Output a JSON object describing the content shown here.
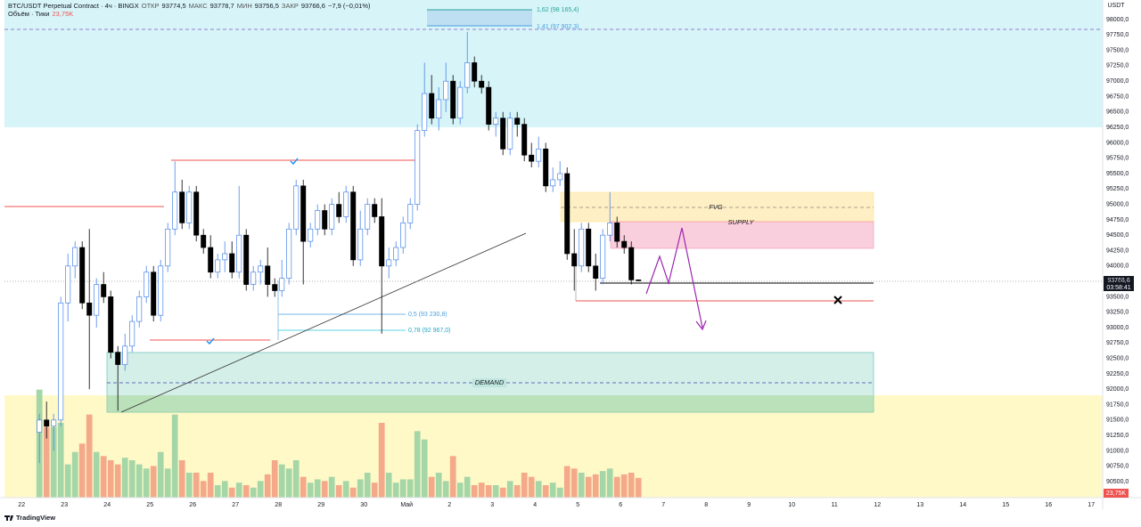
{
  "chart_data": {
    "type": "candlestick",
    "header": {
      "symbol": "BTC/USDT Perpetual Contract · 4ч · BINGX",
      "open_label": "ОТКР",
      "open": "93774,5",
      "high_label": "МАКС",
      "high": "93778,7",
      "low_label": "МИН",
      "low": "93756,5",
      "close_label": "ЗАКР",
      "close": "93766,6",
      "change": "−7,9 (−0,01%)",
      "volume_title": "Объём · Тики",
      "volume_value": "23,75K"
    },
    "currency": "USDT",
    "last_price": "93766,6",
    "countdown": "03:58:41",
    "volume_badge": "23,75K",
    "brand": "TradingView",
    "annotations": {
      "fib_top1": "1,62 (98 165,4)",
      "fib_top2": "1,41 (97 902,3)",
      "fib_low1": "0,5 (93 230,8)",
      "fib_low2": "0,78 (92 967,0)",
      "fvg": "FVG",
      "supply": "SUPPLY",
      "demand": "DEMAND"
    },
    "up_color": "#ffffff",
    "up_border": "#4a86e8",
    "down_color": "#000000",
    "volume_up_color": "#a5d6a7",
    "volume_down_color": "#f4a98a",
    "xlim": [
      -2.4,
      151.6
    ],
    "ylim": [
      90240,
      98318
    ],
    "vlim": [
      0,
      150
    ],
    "xticks": [
      {
        "value": 0,
        "label": "22"
      },
      {
        "value": 6,
        "label": "23"
      },
      {
        "value": 12,
        "label": "24"
      },
      {
        "value": 18,
        "label": "25"
      },
      {
        "value": 24,
        "label": "26"
      },
      {
        "value": 30,
        "label": "27"
      },
      {
        "value": 36,
        "label": "28"
      },
      {
        "value": 42,
        "label": "29"
      },
      {
        "value": 48,
        "label": "30"
      },
      {
        "value": 54,
        "label": "Май"
      },
      {
        "value": 60,
        "label": "2"
      },
      {
        "value": 66,
        "label": "3"
      },
      {
        "value": 72,
        "label": "4"
      },
      {
        "value": 78,
        "label": "5"
      },
      {
        "value": 84,
        "label": "6"
      },
      {
        "value": 90,
        "label": "7"
      },
      {
        "value": 96,
        "label": "8"
      },
      {
        "value": 102,
        "label": "9"
      },
      {
        "value": 108,
        "label": "10"
      },
      {
        "value": 114,
        "label": "11"
      },
      {
        "value": 120,
        "label": "12"
      },
      {
        "value": 126,
        "label": "13"
      },
      {
        "value": 132,
        "label": "14"
      },
      {
        "value": 138,
        "label": "15"
      },
      {
        "value": 144,
        "label": "16"
      },
      {
        "value": 150,
        "label": "17"
      }
    ],
    "yticks": [
      {
        "value": 90500,
        "label": "90500,0"
      },
      {
        "value": 90750,
        "label": "90750,0"
      },
      {
        "value": 91000,
        "label": "91000,0"
      },
      {
        "value": 91250,
        "label": "91250,0"
      },
      {
        "value": 91500,
        "label": "91500,0"
      },
      {
        "value": 91750,
        "label": "91750,0"
      },
      {
        "value": 92000,
        "label": "92000,0"
      },
      {
        "value": 92250,
        "label": "92250,0"
      },
      {
        "value": 92500,
        "label": "92500,0"
      },
      {
        "value": 92750,
        "label": "92750,0"
      },
      {
        "value": 93000,
        "label": "93000,0"
      },
      {
        "value": 93250,
        "label": "93250,0"
      },
      {
        "value": 93500,
        "label": "93500,0"
      },
      {
        "value": 93750,
        "label": "93750,0"
      },
      {
        "value": 94000,
        "label": "94000,0"
      },
      {
        "value": 94250,
        "label": "94250,0"
      },
      {
        "value": 94500,
        "label": "94500,0"
      },
      {
        "value": 94750,
        "label": "94750,0"
      },
      {
        "value": 95000,
        "label": "95000,0"
      },
      {
        "value": 95250,
        "label": "95250,0"
      },
      {
        "value": 95500,
        "label": "95500,0"
      },
      {
        "value": 95750,
        "label": "95750,0"
      },
      {
        "value": 96000,
        "label": "96000,0"
      },
      {
        "value": 96250,
        "label": "96250,0"
      },
      {
        "value": 96500,
        "label": "96500,0"
      },
      {
        "value": 96750,
        "label": "96750,0"
      },
      {
        "value": 97000,
        "label": "97000,0"
      },
      {
        "value": 97250,
        "label": "97250,0"
      },
      {
        "value": 97500,
        "label": "97500,0"
      },
      {
        "value": 97750,
        "label": "97750,0"
      },
      {
        "value": 98000,
        "label": "98000,0"
      }
    ],
    "x": [
      2,
      3,
      4,
      5,
      6,
      7,
      8,
      9,
      10,
      11,
      12,
      13,
      14,
      15,
      16,
      17,
      18,
      19,
      20,
      21,
      22,
      23,
      24,
      25,
      26,
      27,
      28,
      29,
      30,
      31,
      32,
      33,
      34,
      35,
      36,
      37,
      38,
      39,
      40,
      41,
      42,
      43,
      44,
      45,
      46,
      47,
      48,
      49,
      50,
      51,
      52,
      53,
      54,
      55,
      56,
      57,
      58,
      59,
      60,
      61,
      62,
      63,
      64,
      65,
      66,
      67,
      68,
      69,
      70,
      71,
      72,
      73,
      74,
      75,
      76,
      77,
      78,
      79,
      80,
      81,
      82,
      83,
      84,
      85,
      86
    ],
    "candles": [
      [
        91300,
        91600,
        90800,
        91500
      ],
      [
        91500,
        91800,
        91200,
        91400
      ],
      [
        91400,
        91600,
        91000,
        91500
      ],
      [
        91500,
        93500,
        91400,
        93400
      ],
      [
        93400,
        94200,
        93100,
        94000
      ],
      [
        94000,
        94400,
        93800,
        94300
      ],
      [
        94300,
        94400,
        93300,
        93400
      ],
      [
        93400,
        94600,
        92000,
        93200
      ],
      [
        93200,
        93800,
        93000,
        93700
      ],
      [
        93700,
        93900,
        93400,
        93500
      ],
      [
        93500,
        93600,
        92500,
        92600
      ],
      [
        92600,
        92700,
        91650,
        92400
      ],
      [
        92400,
        92900,
        92300,
        92700
      ],
      [
        92700,
        93200,
        92600,
        93100
      ],
      [
        93100,
        93600,
        93000,
        93500
      ],
      [
        93500,
        94000,
        93400,
        93900
      ],
      [
        93900,
        94000,
        93100,
        93200
      ],
      [
        93200,
        94100,
        93100,
        94000
      ],
      [
        94000,
        94700,
        93900,
        94600
      ],
      [
        94600,
        95700,
        94500,
        95200
      ],
      [
        95200,
        95400,
        94600,
        94700
      ],
      [
        94700,
        95300,
        94600,
        95200
      ],
      [
        95200,
        95300,
        94400,
        94500
      ],
      [
        94500,
        94600,
        94200,
        94300
      ],
      [
        94300,
        94500,
        93800,
        93900
      ],
      [
        93900,
        94200,
        93800,
        94100
      ],
      [
        94100,
        94400,
        93900,
        94200
      ],
      [
        94200,
        94400,
        93800,
        93900
      ],
      [
        93900,
        95300,
        93800,
        94500
      ],
      [
        94500,
        94600,
        93600,
        93700
      ],
      [
        93700,
        94000,
        93600,
        93900
      ],
      [
        93900,
        94100,
        93700,
        94000
      ],
      [
        94000,
        94300,
        93500,
        93700
      ],
      [
        93700,
        93800,
        93500,
        93600
      ],
      [
        93600,
        94100,
        93500,
        93800
      ],
      [
        93800,
        94700,
        93700,
        94600
      ],
      [
        94600,
        95400,
        94500,
        95300
      ],
      [
        95300,
        95400,
        93700,
        94400
      ],
      [
        94400,
        94700,
        94300,
        94600
      ],
      [
        94600,
        95000,
        94500,
        94900
      ],
      [
        94900,
        95000,
        94500,
        94600
      ],
      [
        94600,
        95100,
        94500,
        95000
      ],
      [
        95000,
        95200,
        94700,
        94800
      ],
      [
        94800,
        95300,
        94700,
        95200
      ],
      [
        95200,
        95300,
        94000,
        94100
      ],
      [
        94100,
        94900,
        94000,
        94600
      ],
      [
        94600,
        95100,
        94500,
        95000
      ],
      [
        95000,
        95100,
        94700,
        94800
      ],
      [
        94800,
        95100,
        92900,
        94000
      ],
      [
        94000,
        94300,
        93800,
        94100
      ],
      [
        94100,
        94400,
        94000,
        94300
      ],
      [
        94300,
        94800,
        94200,
        94700
      ],
      [
        94700,
        95100,
        94600,
        95000
      ],
      [
        95000,
        96300,
        94900,
        96200
      ],
      [
        96200,
        97300,
        96100,
        96800
      ],
      [
        96800,
        97100,
        96300,
        96400
      ],
      [
        96400,
        96900,
        96200,
        96700
      ],
      [
        96700,
        97300,
        96500,
        97000
      ],
      [
        97000,
        97100,
        96300,
        96400
      ],
      [
        96400,
        97000,
        96300,
        96900
      ],
      [
        96900,
        97800,
        96800,
        97300
      ],
      [
        97300,
        97400,
        96900,
        97000
      ],
      [
        97000,
        97100,
        96800,
        96900
      ],
      [
        96900,
        97000,
        96200,
        96300
      ],
      [
        96300,
        96500,
        96100,
        96400
      ],
      [
        96400,
        96500,
        95800,
        95900
      ],
      [
        95900,
        96500,
        95800,
        96400
      ],
      [
        96400,
        96500,
        96100,
        96300
      ],
      [
        96300,
        96400,
        95700,
        95800
      ],
      [
        95800,
        96000,
        95600,
        95700
      ],
      [
        95700,
        96100,
        95600,
        95900
      ],
      [
        95900,
        96000,
        95200,
        95300
      ],
      [
        95300,
        95600,
        95200,
        95400
      ],
      [
        95400,
        95700,
        95300,
        95500
      ],
      [
        95500,
        95600,
        94100,
        94200
      ],
      [
        94200,
        94600,
        93600,
        94000
      ],
      [
        94000,
        94700,
        93900,
        94600
      ],
      [
        94600,
        94700,
        93900,
        94000
      ],
      [
        94000,
        94200,
        93600,
        93800
      ],
      [
        93800,
        94600,
        93700,
        94500
      ],
      [
        94500,
        95200,
        94400,
        94700
      ],
      [
        94700,
        94800,
        94300,
        94400
      ],
      [
        94400,
        94500,
        94200,
        94300
      ],
      [
        94300,
        94400,
        93700,
        93774.5
      ],
      [
        93774.5,
        93778.7,
        93756.5,
        93766.6
      ]
    ],
    "volume": [
      130,
      85,
      85,
      90,
      40,
      55,
      65,
      100,
      55,
      50,
      45,
      40,
      48,
      45,
      40,
      35,
      38,
      55,
      35,
      100,
      45,
      30,
      30,
      20,
      30,
      15,
      20,
      12,
      18,
      15,
      12,
      20,
      28,
      45,
      40,
      35,
      45,
      25,
      18,
      22,
      20,
      25,
      15,
      20,
      12,
      22,
      30,
      18,
      90,
      30,
      18,
      22,
      22,
      80,
      70,
      25,
      30,
      20,
      50,
      18,
      25,
      15,
      18,
      15,
      15,
      12,
      20,
      15,
      30,
      25,
      20,
      15,
      18,
      12,
      38,
      35,
      30,
      25,
      28,
      32,
      35,
      25,
      28,
      30,
      23.75
    ]
  }
}
